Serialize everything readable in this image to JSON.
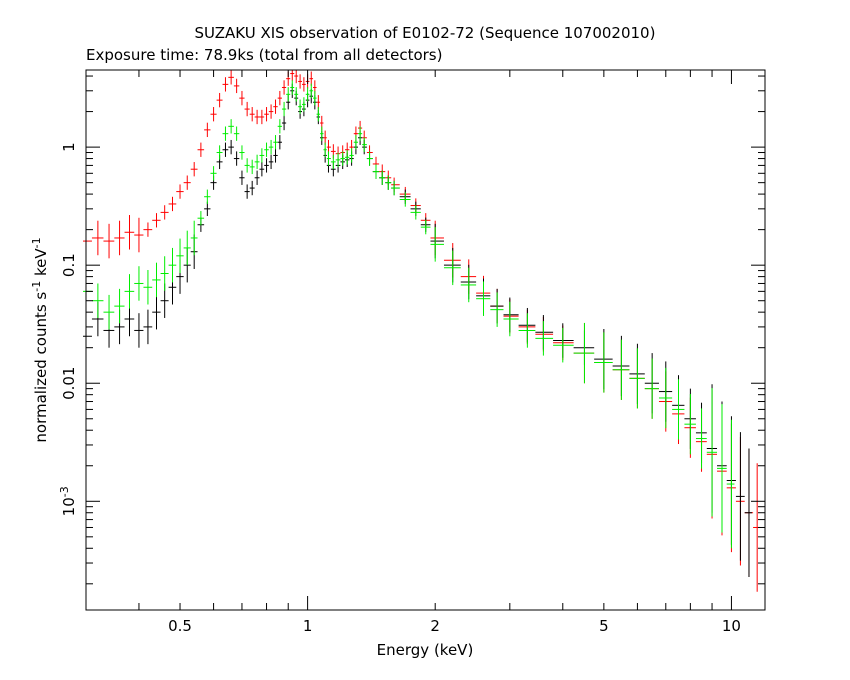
{
  "chart_data": {
    "type": "scatter",
    "title": "SUZAKU XIS observation of E0102-72 (Sequence 107002010)",
    "subtitle": "Exposure time: 78.9ks (total from all detectors)",
    "xlabel": "Energy (keV)",
    "ylabel": "normalized counts s",
    "ylabel_sup1": "-1",
    "ylabel_mid": " keV",
    "ylabel_sup2": "-1",
    "x_scale": "log",
    "y_scale": "log",
    "xlim": [
      0.3,
      12
    ],
    "ylim": [
      0.00012,
      4.5
    ],
    "x_ticks": [
      {
        "value": 0.5,
        "label": "0.5"
      },
      {
        "value": 1,
        "label": "1"
      },
      {
        "value": 2,
        "label": "2"
      },
      {
        "value": 5,
        "label": "5"
      },
      {
        "value": 10,
        "label": "10"
      }
    ],
    "y_ticks": [
      {
        "value": 1,
        "label": "1"
      },
      {
        "value": 0.1,
        "label": "0.1"
      },
      {
        "value": 0.01,
        "label": "0.01"
      }
    ],
    "y_tick_pow": {
      "value": 0.001,
      "base": "10",
      "exp": "-3"
    },
    "grid": false,
    "legend": "none",
    "series": [
      {
        "color": "#ff0000",
        "points": [
          [
            0.3,
            0.16
          ],
          [
            0.32,
            0.17
          ],
          [
            0.34,
            0.16
          ],
          [
            0.36,
            0.17
          ],
          [
            0.38,
            0.19
          ],
          [
            0.4,
            0.18
          ],
          [
            0.42,
            0.2
          ],
          [
            0.44,
            0.24
          ],
          [
            0.46,
            0.28
          ],
          [
            0.48,
            0.33
          ],
          [
            0.5,
            0.42
          ],
          [
            0.52,
            0.5
          ],
          [
            0.54,
            0.65
          ],
          [
            0.56,
            0.95
          ],
          [
            0.58,
            1.4
          ],
          [
            0.6,
            1.9
          ],
          [
            0.62,
            2.5
          ],
          [
            0.64,
            3.4
          ],
          [
            0.66,
            3.9
          ],
          [
            0.68,
            3.3
          ],
          [
            0.7,
            2.6
          ],
          [
            0.72,
            2.1
          ],
          [
            0.74,
            1.9
          ],
          [
            0.76,
            1.8
          ],
          [
            0.78,
            1.8
          ],
          [
            0.8,
            1.9
          ],
          [
            0.82,
            2.0
          ],
          [
            0.84,
            2.2
          ],
          [
            0.86,
            2.6
          ],
          [
            0.88,
            3.2
          ],
          [
            0.9,
            3.8
          ],
          [
            0.92,
            4.2
          ],
          [
            0.94,
            4.0
          ],
          [
            0.96,
            3.6
          ],
          [
            0.98,
            3.4
          ],
          [
            1.0,
            3.6
          ],
          [
            1.02,
            3.8
          ],
          [
            1.04,
            3.2
          ],
          [
            1.06,
            2.4
          ],
          [
            1.08,
            1.6
          ],
          [
            1.1,
            1.2
          ],
          [
            1.12,
            1.0
          ],
          [
            1.15,
            0.92
          ],
          [
            1.18,
            0.88
          ],
          [
            1.21,
            0.9
          ],
          [
            1.24,
            0.95
          ],
          [
            1.27,
            1.0
          ],
          [
            1.3,
            1.3
          ],
          [
            1.33,
            1.45
          ],
          [
            1.36,
            1.2
          ],
          [
            1.4,
            0.9
          ],
          [
            1.45,
            0.72
          ],
          [
            1.5,
            0.62
          ],
          [
            1.55,
            0.55
          ],
          [
            1.6,
            0.48
          ],
          [
            1.7,
            0.4
          ],
          [
            1.8,
            0.32
          ],
          [
            1.9,
            0.24
          ],
          [
            2.0,
            0.17
          ],
          [
            2.2,
            0.11
          ],
          [
            2.4,
            0.08
          ],
          [
            2.6,
            0.058
          ],
          [
            2.8,
            0.045
          ],
          [
            3.0,
            0.037
          ],
          [
            3.3,
            0.03
          ],
          [
            3.6,
            0.026
          ],
          [
            4.0,
            0.022
          ],
          [
            4.5,
            0.018
          ],
          [
            5.0,
            0.015
          ],
          [
            5.5,
            0.013
          ],
          [
            6.0,
            0.011
          ],
          [
            6.5,
            0.009
          ],
          [
            7.0,
            0.007
          ],
          [
            7.5,
            0.0055
          ],
          [
            8.0,
            0.0042
          ],
          [
            8.5,
            0.0032
          ],
          [
            9.0,
            0.0025
          ],
          [
            9.5,
            0.0018
          ],
          [
            10.0,
            0.0013
          ],
          [
            10.5,
            0.001
          ],
          [
            11.0,
            0.0008
          ],
          [
            11.5,
            0.0006
          ]
        ]
      },
      {
        "color": "#000000",
        "points": [
          [
            0.3,
            0.025
          ],
          [
            0.32,
            0.035
          ],
          [
            0.34,
            0.028
          ],
          [
            0.36,
            0.03
          ],
          [
            0.38,
            0.035
          ],
          [
            0.4,
            0.028
          ],
          [
            0.42,
            0.03
          ],
          [
            0.44,
            0.04
          ],
          [
            0.46,
            0.05
          ],
          [
            0.48,
            0.065
          ],
          [
            0.5,
            0.08
          ],
          [
            0.52,
            0.1
          ],
          [
            0.54,
            0.13
          ],
          [
            0.56,
            0.22
          ],
          [
            0.58,
            0.3
          ],
          [
            0.6,
            0.5
          ],
          [
            0.62,
            0.75
          ],
          [
            0.64,
            0.95
          ],
          [
            0.66,
            1.0
          ],
          [
            0.68,
            0.8
          ],
          [
            0.7,
            0.55
          ],
          [
            0.72,
            0.42
          ],
          [
            0.74,
            0.45
          ],
          [
            0.76,
            0.55
          ],
          [
            0.78,
            0.65
          ],
          [
            0.8,
            0.7
          ],
          [
            0.82,
            0.75
          ],
          [
            0.84,
            0.85
          ],
          [
            0.86,
            1.1
          ],
          [
            0.88,
            1.6
          ],
          [
            0.9,
            2.4
          ],
          [
            0.92,
            3.0
          ],
          [
            0.94,
            2.6
          ],
          [
            0.96,
            2.0
          ],
          [
            0.98,
            2.1
          ],
          [
            1.0,
            2.5
          ],
          [
            1.02,
            2.7
          ],
          [
            1.04,
            2.4
          ],
          [
            1.06,
            1.8
          ],
          [
            1.08,
            1.2
          ],
          [
            1.1,
            0.85
          ],
          [
            1.12,
            0.7
          ],
          [
            1.15,
            0.65
          ],
          [
            1.18,
            0.7
          ],
          [
            1.21,
            0.75
          ],
          [
            1.24,
            0.78
          ],
          [
            1.27,
            0.8
          ],
          [
            1.3,
            1.0
          ],
          [
            1.33,
            1.2
          ],
          [
            1.36,
            1.0
          ],
          [
            1.4,
            0.8
          ],
          [
            1.45,
            0.62
          ],
          [
            1.5,
            0.55
          ],
          [
            1.55,
            0.5
          ],
          [
            1.6,
            0.45
          ],
          [
            1.7,
            0.38
          ],
          [
            1.8,
            0.3
          ],
          [
            1.9,
            0.22
          ],
          [
            2.0,
            0.16
          ],
          [
            2.2,
            0.1
          ],
          [
            2.4,
            0.072
          ],
          [
            2.6,
            0.055
          ],
          [
            2.8,
            0.045
          ],
          [
            3.0,
            0.038
          ],
          [
            3.3,
            0.031
          ],
          [
            3.6,
            0.027
          ],
          [
            4.0,
            0.023
          ],
          [
            4.5,
            0.02
          ],
          [
            5.0,
            0.016
          ],
          [
            5.5,
            0.014
          ],
          [
            6.0,
            0.012
          ],
          [
            6.5,
            0.01
          ],
          [
            7.0,
            0.0085
          ],
          [
            7.5,
            0.0065
          ],
          [
            8.0,
            0.005
          ],
          [
            8.5,
            0.0038
          ],
          [
            9.0,
            0.0028
          ],
          [
            9.5,
            0.002
          ],
          [
            10.0,
            0.0015
          ],
          [
            10.5,
            0.0011
          ],
          [
            11.0,
            0.0008
          ]
        ]
      },
      {
        "color": "#00ee00",
        "points": [
          [
            0.3,
            0.06
          ],
          [
            0.32,
            0.05
          ],
          [
            0.34,
            0.04
          ],
          [
            0.36,
            0.045
          ],
          [
            0.38,
            0.06
          ],
          [
            0.4,
            0.07
          ],
          [
            0.42,
            0.065
          ],
          [
            0.44,
            0.075
          ],
          [
            0.46,
            0.085
          ],
          [
            0.48,
            0.1
          ],
          [
            0.5,
            0.12
          ],
          [
            0.52,
            0.14
          ],
          [
            0.54,
            0.17
          ],
          [
            0.56,
            0.25
          ],
          [
            0.58,
            0.38
          ],
          [
            0.6,
            0.6
          ],
          [
            0.62,
            0.9
          ],
          [
            0.64,
            1.3
          ],
          [
            0.66,
            1.5
          ],
          [
            0.68,
            1.3
          ],
          [
            0.7,
            0.9
          ],
          [
            0.72,
            0.7
          ],
          [
            0.74,
            0.68
          ],
          [
            0.76,
            0.75
          ],
          [
            0.78,
            0.85
          ],
          [
            0.8,
            0.95
          ],
          [
            0.82,
            1.0
          ],
          [
            0.84,
            1.1
          ],
          [
            0.86,
            1.5
          ],
          [
            0.88,
            2.1
          ],
          [
            0.9,
            2.8
          ],
          [
            0.92,
            3.2
          ],
          [
            0.94,
            2.8
          ],
          [
            0.96,
            2.2
          ],
          [
            0.98,
            2.3
          ],
          [
            1.0,
            2.8
          ],
          [
            1.02,
            3.0
          ],
          [
            1.04,
            2.6
          ],
          [
            1.06,
            1.9
          ],
          [
            1.08,
            1.3
          ],
          [
            1.1,
            0.95
          ],
          [
            1.12,
            0.8
          ],
          [
            1.15,
            0.75
          ],
          [
            1.18,
            0.78
          ],
          [
            1.21,
            0.8
          ],
          [
            1.24,
            0.82
          ],
          [
            1.27,
            0.85
          ],
          [
            1.3,
            1.1
          ],
          [
            1.33,
            1.3
          ],
          [
            1.36,
            1.05
          ],
          [
            1.4,
            0.8
          ],
          [
            1.45,
            0.62
          ],
          [
            1.5,
            0.55
          ],
          [
            1.55,
            0.5
          ],
          [
            1.6,
            0.45
          ],
          [
            1.7,
            0.36
          ],
          [
            1.8,
            0.28
          ],
          [
            1.9,
            0.21
          ],
          [
            2.0,
            0.15
          ],
          [
            2.2,
            0.095
          ],
          [
            2.4,
            0.068
          ],
          [
            2.6,
            0.052
          ],
          [
            2.8,
            0.042
          ],
          [
            3.0,
            0.035
          ],
          [
            3.3,
            0.028
          ],
          [
            3.6,
            0.024
          ],
          [
            4.0,
            0.021
          ],
          [
            4.5,
            0.018
          ],
          [
            5.0,
            0.015
          ],
          [
            5.5,
            0.013
          ],
          [
            6.0,
            0.011
          ],
          [
            6.5,
            0.009
          ],
          [
            7.0,
            0.0075
          ],
          [
            7.5,
            0.006
          ],
          [
            8.0,
            0.0045
          ],
          [
            8.5,
            0.0034
          ],
          [
            9.0,
            0.0026
          ],
          [
            9.5,
            0.0019
          ],
          [
            10.0,
            0.0014
          ]
        ]
      }
    ]
  }
}
